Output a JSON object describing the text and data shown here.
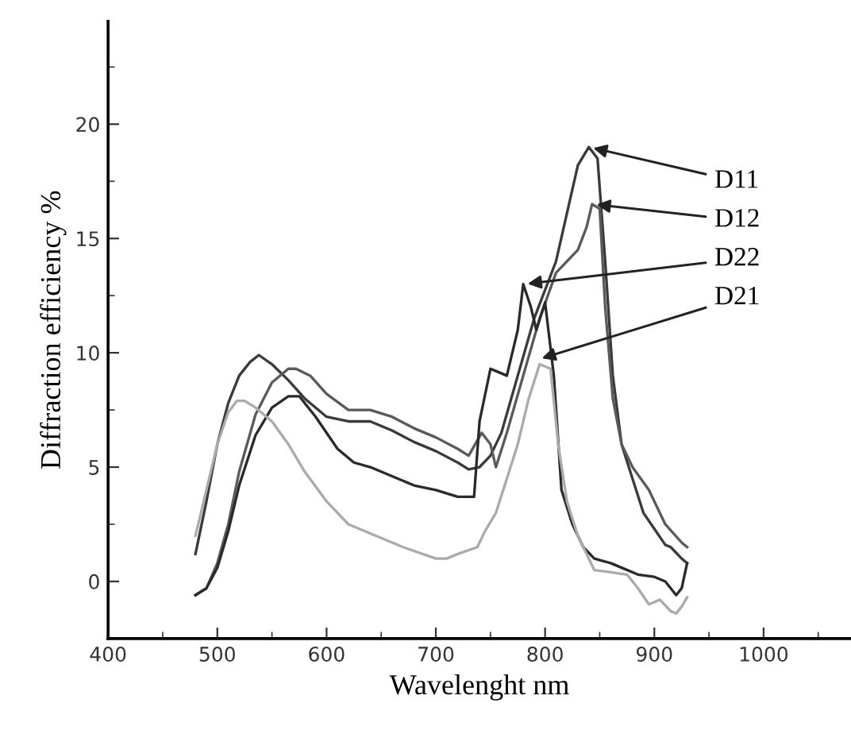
{
  "chart_data": {
    "type": "line",
    "xlabel": "Wavelenght nm",
    "ylabel": "Diffraction efficiency %",
    "xlim": [
      400,
      1080
    ],
    "ylim": [
      -2.5,
      24.5
    ],
    "xticks": [
      400,
      500,
      600,
      700,
      800,
      900,
      1000
    ],
    "yticks": [
      0,
      5,
      10,
      15,
      20
    ],
    "grid": false,
    "legend": false,
    "marker": "none",
    "line_style": "solid",
    "series": [
      {
        "color": "#3a3a3a",
        "x": [
          480,
          490,
          500,
          510,
          520,
          530,
          538,
          550,
          565,
          580,
          600,
          620,
          640,
          660,
          680,
          700,
          720,
          730,
          740,
          750,
          760,
          775,
          790,
          810,
          830,
          840,
          848,
          855,
          862,
          870,
          880,
          890,
          900,
          910,
          915,
          925,
          930
        ],
        "values": [
          1.2,
          3.5,
          6.0,
          7.8,
          9.0,
          9.6,
          9.9,
          9.5,
          8.8,
          8.0,
          7.2,
          7.0,
          7.0,
          6.6,
          6.1,
          5.7,
          5.2,
          4.9,
          5.0,
          5.5,
          6.5,
          9.0,
          11.5,
          14.0,
          18.2,
          19.0,
          18.5,
          14.0,
          9.0,
          6.0,
          4.5,
          3.0,
          2.3,
          1.6,
          1.5,
          1.0,
          0.8
        ]
      },
      {
        "color": "#5a5a5a",
        "x": [
          480,
          490,
          500,
          510,
          520,
          535,
          550,
          565,
          572,
          585,
          600,
          620,
          640,
          660,
          680,
          700,
          720,
          730,
          742,
          750,
          755,
          765,
          780,
          795,
          810,
          830,
          838,
          843,
          850,
          855,
          862,
          870,
          880,
          895,
          910,
          925,
          930
        ],
        "values": [
          -0.6,
          -0.3,
          0.8,
          2.5,
          4.8,
          7.3,
          8.7,
          9.3,
          9.3,
          9.0,
          8.2,
          7.5,
          7.5,
          7.2,
          6.7,
          6.3,
          5.8,
          5.5,
          6.5,
          6.0,
          5.0,
          6.5,
          9.0,
          11.5,
          13.5,
          14.5,
          15.5,
          16.5,
          16.3,
          12.0,
          8.0,
          6.0,
          5.0,
          4.0,
          2.5,
          1.7,
          1.5
        ]
      },
      {
        "color": "#2a2a2a",
        "x": [
          480,
          490,
          500,
          510,
          520,
          535,
          550,
          565,
          575,
          590,
          610,
          625,
          640,
          660,
          680,
          700,
          720,
          735,
          740,
          750,
          755,
          765,
          775,
          780,
          787,
          792,
          800,
          808,
          815,
          825,
          835,
          845,
          860,
          870,
          885,
          900,
          910,
          920,
          925,
          930
        ],
        "values": [
          -0.6,
          -0.3,
          0.6,
          2.2,
          4.2,
          6.4,
          7.6,
          8.1,
          8.1,
          7.2,
          5.8,
          5.2,
          5.0,
          4.6,
          4.2,
          4.0,
          3.7,
          3.7,
          7.0,
          9.3,
          9.2,
          9.0,
          11.0,
          13.0,
          12.0,
          11.0,
          12.2,
          9.0,
          4.0,
          2.5,
          1.5,
          1.0,
          0.8,
          0.6,
          0.3,
          0.2,
          0.0,
          -0.6,
          -0.3,
          0.8
        ]
      },
      {
        "color": "#ababab",
        "x": [
          480,
          490,
          500,
          510,
          518,
          525,
          535,
          550,
          565,
          580,
          600,
          620,
          640,
          670,
          700,
          710,
          720,
          738,
          745,
          755,
          765,
          775,
          785,
          795,
          805,
          812,
          820,
          830,
          845,
          860,
          875,
          885,
          895,
          905,
          915,
          920,
          925,
          930
        ],
        "values": [
          2.0,
          4.0,
          6.0,
          7.4,
          7.9,
          7.9,
          7.6,
          7.0,
          6.0,
          4.8,
          3.5,
          2.5,
          2.1,
          1.5,
          1.0,
          1.0,
          1.2,
          1.5,
          2.2,
          3.0,
          4.5,
          6.0,
          8.0,
          9.5,
          9.3,
          6.0,
          3.5,
          2.0,
          0.5,
          0.4,
          0.3,
          -0.3,
          -1.0,
          -0.8,
          -1.3,
          -1.4,
          -1.1,
          -0.7
        ]
      }
    ],
    "annotations": [
      {
        "text": "D11",
        "x": 840,
        "y": 19.0
      },
      {
        "text": "D12",
        "x": 843,
        "y": 16.5
      },
      {
        "text": "D22",
        "x": 780,
        "y": 13.0
      },
      {
        "text": "D21",
        "x": 793,
        "y": 9.7
      }
    ]
  }
}
